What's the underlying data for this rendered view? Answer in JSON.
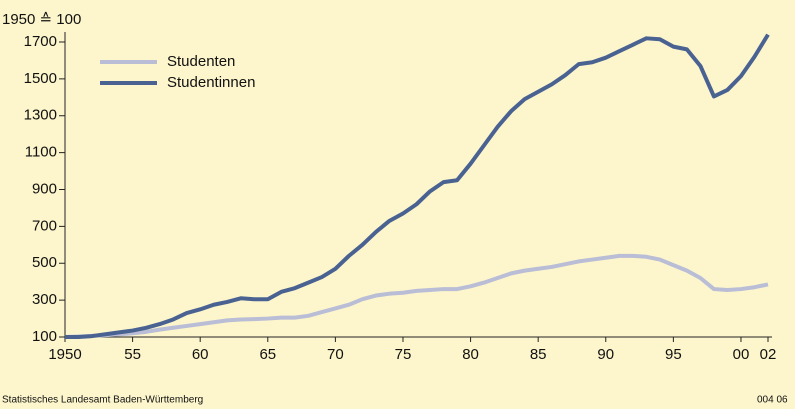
{
  "chart_data": {
    "type": "line",
    "ylabel": "1950 ≙ 100",
    "source": "Statistisches Landesamt Baden-Württemberg",
    "code": "004 06",
    "x": [
      1950,
      1951,
      1952,
      1953,
      1954,
      1955,
      1956,
      1957,
      1958,
      1959,
      1960,
      1961,
      1962,
      1963,
      1964,
      1965,
      1966,
      1967,
      1968,
      1969,
      1970,
      1971,
      1972,
      1973,
      1974,
      1975,
      1976,
      1977,
      1978,
      1979,
      1980,
      1981,
      1982,
      1983,
      1984,
      1985,
      1986,
      1987,
      1988,
      1989,
      1990,
      1991,
      1992,
      1993,
      1994,
      1995,
      1996,
      1997,
      1998,
      1999,
      2000,
      2001,
      2002
    ],
    "series": [
      {
        "name": "Studenten",
        "color": "#b9bdd6",
        "values": [
          100,
          103,
          106,
          110,
          115,
          120,
          128,
          140,
          150,
          160,
          170,
          180,
          190,
          195,
          197,
          200,
          205,
          205,
          215,
          235,
          255,
          275,
          305,
          325,
          335,
          340,
          350,
          355,
          360,
          360,
          375,
          395,
          420,
          445,
          460,
          470,
          480,
          495,
          510,
          520,
          530,
          540,
          540,
          535,
          520,
          490,
          460,
          420,
          360,
          355,
          360,
          370,
          385
        ]
      },
      {
        "name": "Studentinnen",
        "color": "#4a6291",
        "values": [
          100,
          100,
          105,
          115,
          125,
          135,
          150,
          170,
          195,
          230,
          250,
          275,
          290,
          310,
          305,
          305,
          345,
          365,
          395,
          425,
          470,
          540,
          600,
          670,
          730,
          770,
          820,
          890,
          940,
          950,
          1040,
          1140,
          1240,
          1325,
          1390,
          1430,
          1470,
          1520,
          1580,
          1590,
          1615,
          1650,
          1685,
          1720,
          1715,
          1675,
          1660,
          1570,
          1405,
          1440,
          1515,
          1620,
          1740
        ]
      }
    ],
    "xlim": [
      1950,
      2002
    ],
    "ylim": [
      100,
      1700
    ],
    "xticks": [
      1950,
      {
        "value": 1955,
        "label": "55"
      },
      {
        "value": 1960,
        "label": "60"
      },
      {
        "value": 1965,
        "label": "65"
      },
      {
        "value": 1970,
        "label": "70"
      },
      {
        "value": 1975,
        "label": "75"
      },
      {
        "value": 1980,
        "label": "80"
      },
      {
        "value": 1985,
        "label": "85"
      },
      {
        "value": 1990,
        "label": "90"
      },
      {
        "value": 1995,
        "label": "95"
      },
      {
        "value": 2000,
        "label": "00"
      },
      {
        "value": 2002,
        "label": "02"
      }
    ],
    "yticks": [
      100,
      300,
      500,
      700,
      900,
      1100,
      1300,
      1500,
      1700
    ],
    "grid": false,
    "legend": "upper left"
  }
}
